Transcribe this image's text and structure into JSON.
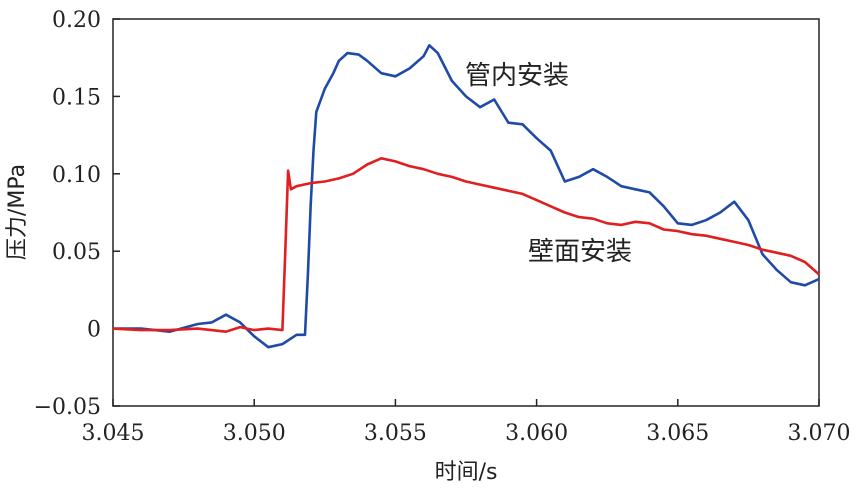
{
  "chart_data": {
    "type": "line",
    "xlabel": "时间/s",
    "ylabel": "压力/MPa",
    "xlim": [
      3.045,
      3.07
    ],
    "ylim": [
      -0.05,
      0.2
    ],
    "xticks": [
      "3.045",
      "3.050",
      "3.055",
      "3.060",
      "3.065",
      "3.070"
    ],
    "yticks": [
      "0.20",
      "0.15",
      "0.10",
      "0.05",
      "0",
      "−0.05"
    ],
    "grid": false,
    "annotations": [
      {
        "text": "管内安装",
        "series": "管内安装"
      },
      {
        "text": "壁面安装",
        "series": "壁面安装"
      }
    ],
    "series": [
      {
        "name": "管内安装",
        "color": "#1f4aa8",
        "points": [
          [
            3.045,
            0.0
          ],
          [
            3.046,
            0.0
          ],
          [
            3.047,
            -0.002
          ],
          [
            3.048,
            0.003
          ],
          [
            3.0485,
            0.004
          ],
          [
            3.049,
            0.009
          ],
          [
            3.0495,
            0.004
          ],
          [
            3.05,
            -0.005
          ],
          [
            3.0505,
            -0.012
          ],
          [
            3.051,
            -0.01
          ],
          [
            3.0515,
            -0.004
          ],
          [
            3.0518,
            -0.004
          ],
          [
            3.0519,
            0.035
          ],
          [
            3.052,
            0.08
          ],
          [
            3.0521,
            0.115
          ],
          [
            3.0522,
            0.14
          ],
          [
            3.0525,
            0.155
          ],
          [
            3.0528,
            0.165
          ],
          [
            3.053,
            0.173
          ],
          [
            3.0533,
            0.178
          ],
          [
            3.0537,
            0.177
          ],
          [
            3.054,
            0.173
          ],
          [
            3.0545,
            0.165
          ],
          [
            3.055,
            0.163
          ],
          [
            3.0555,
            0.168
          ],
          [
            3.056,
            0.176
          ],
          [
            3.0562,
            0.183
          ],
          [
            3.0565,
            0.178
          ],
          [
            3.057,
            0.16
          ],
          [
            3.0575,
            0.15
          ],
          [
            3.058,
            0.143
          ],
          [
            3.0585,
            0.148
          ],
          [
            3.059,
            0.133
          ],
          [
            3.0595,
            0.132
          ],
          [
            3.06,
            0.123
          ],
          [
            3.0605,
            0.115
          ],
          [
            3.061,
            0.095
          ],
          [
            3.0615,
            0.098
          ],
          [
            3.062,
            0.103
          ],
          [
            3.0625,
            0.098
          ],
          [
            3.063,
            0.092
          ],
          [
            3.0635,
            0.09
          ],
          [
            3.064,
            0.088
          ],
          [
            3.0645,
            0.079
          ],
          [
            3.065,
            0.068
          ],
          [
            3.0655,
            0.067
          ],
          [
            3.066,
            0.07
          ],
          [
            3.0665,
            0.075
          ],
          [
            3.067,
            0.082
          ],
          [
            3.0675,
            0.07
          ],
          [
            3.068,
            0.048
          ],
          [
            3.0685,
            0.038
          ],
          [
            3.069,
            0.03
          ],
          [
            3.0695,
            0.028
          ],
          [
            3.07,
            0.032
          ]
        ]
      },
      {
        "name": "壁面安装",
        "color": "#e02020",
        "points": [
          [
            3.045,
            0.0
          ],
          [
            3.046,
            -0.001
          ],
          [
            3.047,
            -0.001
          ],
          [
            3.048,
            0.0
          ],
          [
            3.049,
            -0.002
          ],
          [
            3.0495,
            0.001
          ],
          [
            3.05,
            -0.001
          ],
          [
            3.0505,
            0.0
          ],
          [
            3.051,
            -0.001
          ],
          [
            3.0511,
            0.05
          ],
          [
            3.0512,
            0.102
          ],
          [
            3.0513,
            0.09
          ],
          [
            3.0515,
            0.092
          ],
          [
            3.052,
            0.094
          ],
          [
            3.0525,
            0.095
          ],
          [
            3.053,
            0.097
          ],
          [
            3.0535,
            0.1
          ],
          [
            3.054,
            0.106
          ],
          [
            3.0545,
            0.11
          ],
          [
            3.055,
            0.108
          ],
          [
            3.0555,
            0.105
          ],
          [
            3.056,
            0.103
          ],
          [
            3.0565,
            0.1
          ],
          [
            3.057,
            0.098
          ],
          [
            3.0575,
            0.095
          ],
          [
            3.058,
            0.093
          ],
          [
            3.0585,
            0.091
          ],
          [
            3.059,
            0.089
          ],
          [
            3.0595,
            0.087
          ],
          [
            3.06,
            0.083
          ],
          [
            3.0605,
            0.079
          ],
          [
            3.061,
            0.075
          ],
          [
            3.0615,
            0.072
          ],
          [
            3.062,
            0.071
          ],
          [
            3.0625,
            0.068
          ],
          [
            3.063,
            0.067
          ],
          [
            3.0635,
            0.069
          ],
          [
            3.064,
            0.068
          ],
          [
            3.0645,
            0.064
          ],
          [
            3.065,
            0.063
          ],
          [
            3.0655,
            0.061
          ],
          [
            3.066,
            0.06
          ],
          [
            3.0665,
            0.058
          ],
          [
            3.067,
            0.056
          ],
          [
            3.0675,
            0.054
          ],
          [
            3.068,
            0.051
          ],
          [
            3.0685,
            0.049
          ],
          [
            3.069,
            0.047
          ],
          [
            3.0695,
            0.043
          ],
          [
            3.07,
            0.035
          ]
        ]
      }
    ]
  }
}
